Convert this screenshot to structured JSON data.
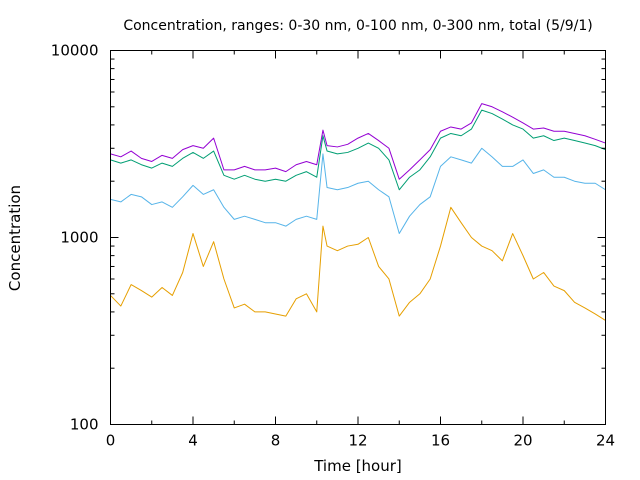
{
  "chart_data": {
    "type": "line",
    "title": "Concentration, ranges: 0-30 nm, 0-100 nm, 0-300 nm, total (5/9/1)",
    "xlabel": "Time [hour]",
    "ylabel": "Concentration",
    "xlim": [
      0,
      24
    ],
    "ylim": [
      100,
      10000
    ],
    "y_scale": "log",
    "grid": false,
    "legend": "none",
    "x_ticks": [
      0,
      4,
      8,
      12,
      16,
      20,
      24
    ],
    "x_tick_labels": [
      "0",
      "4",
      "8",
      "12",
      "16",
      "20",
      "24"
    ],
    "y_ticks": [
      100,
      1000,
      10000
    ],
    "y_tick_labels": [
      "100",
      "1000",
      "10000"
    ],
    "x": [
      0,
      0.5,
      1,
      1.5,
      2,
      2.5,
      3,
      3.5,
      4,
      4.5,
      5,
      5.5,
      6,
      6.5,
      7,
      7.5,
      8,
      8.5,
      9,
      9.5,
      10,
      10.3,
      10.5,
      11,
      11.5,
      12,
      12.5,
      13,
      13.5,
      14,
      14.5,
      15,
      15.5,
      16,
      16.5,
      17,
      17.5,
      18,
      18.5,
      19,
      19.5,
      20,
      20.5,
      21,
      21.5,
      22,
      22.5,
      23,
      23.5,
      24
    ],
    "series": [
      {
        "color": "#e69f00",
        "values": [
          490,
          430,
          560,
          520,
          480,
          540,
          490,
          650,
          1050,
          700,
          950,
          600,
          420,
          440,
          400,
          400,
          390,
          380,
          470,
          500,
          400,
          1150,
          900,
          850,
          900,
          920,
          1000,
          700,
          600,
          380,
          450,
          500,
          600,
          900,
          1450,
          1200,
          1000,
          900,
          850,
          750,
          1050,
          800,
          600,
          650,
          550,
          520,
          450,
          420,
          390,
          360
        ]
      },
      {
        "color": "#56b4e9",
        "values": [
          1600,
          1550,
          1700,
          1650,
          1500,
          1550,
          1450,
          1650,
          1900,
          1700,
          1800,
          1450,
          1250,
          1300,
          1250,
          1200,
          1200,
          1150,
          1250,
          1300,
          1250,
          2800,
          1850,
          1800,
          1850,
          1950,
          2000,
          1800,
          1650,
          1050,
          1300,
          1500,
          1650,
          2400,
          2700,
          2600,
          2500,
          3000,
          2700,
          2400,
          2400,
          2600,
          2200,
          2300,
          2100,
          2100,
          2000,
          1950,
          1950,
          1800
        ]
      },
      {
        "color": "#009e73",
        "values": [
          2600,
          2500,
          2600,
          2450,
          2350,
          2500,
          2400,
          2650,
          2850,
          2650,
          2900,
          2150,
          2050,
          2150,
          2050,
          2000,
          2050,
          2000,
          2150,
          2250,
          2100,
          3500,
          2900,
          2800,
          2850,
          3000,
          3200,
          3000,
          2600,
          1800,
          2100,
          2300,
          2700,
          3400,
          3600,
          3500,
          3800,
          4800,
          4600,
          4300,
          4000,
          3800,
          3400,
          3500,
          3300,
          3400,
          3300,
          3200,
          3100,
          2950
        ]
      },
      {
        "color": "#9400d3",
        "values": [
          2800,
          2700,
          2900,
          2650,
          2550,
          2750,
          2650,
          2950,
          3100,
          3000,
          3400,
          2300,
          2300,
          2400,
          2300,
          2300,
          2350,
          2250,
          2450,
          2550,
          2450,
          3750,
          3100,
          3050,
          3150,
          3400,
          3600,
          3300,
          3000,
          2050,
          2300,
          2600,
          2950,
          3700,
          3900,
          3800,
          4100,
          5200,
          5000,
          4700,
          4400,
          4100,
          3800,
          3850,
          3700,
          3700,
          3600,
          3500,
          3350,
          3200
        ]
      }
    ]
  }
}
